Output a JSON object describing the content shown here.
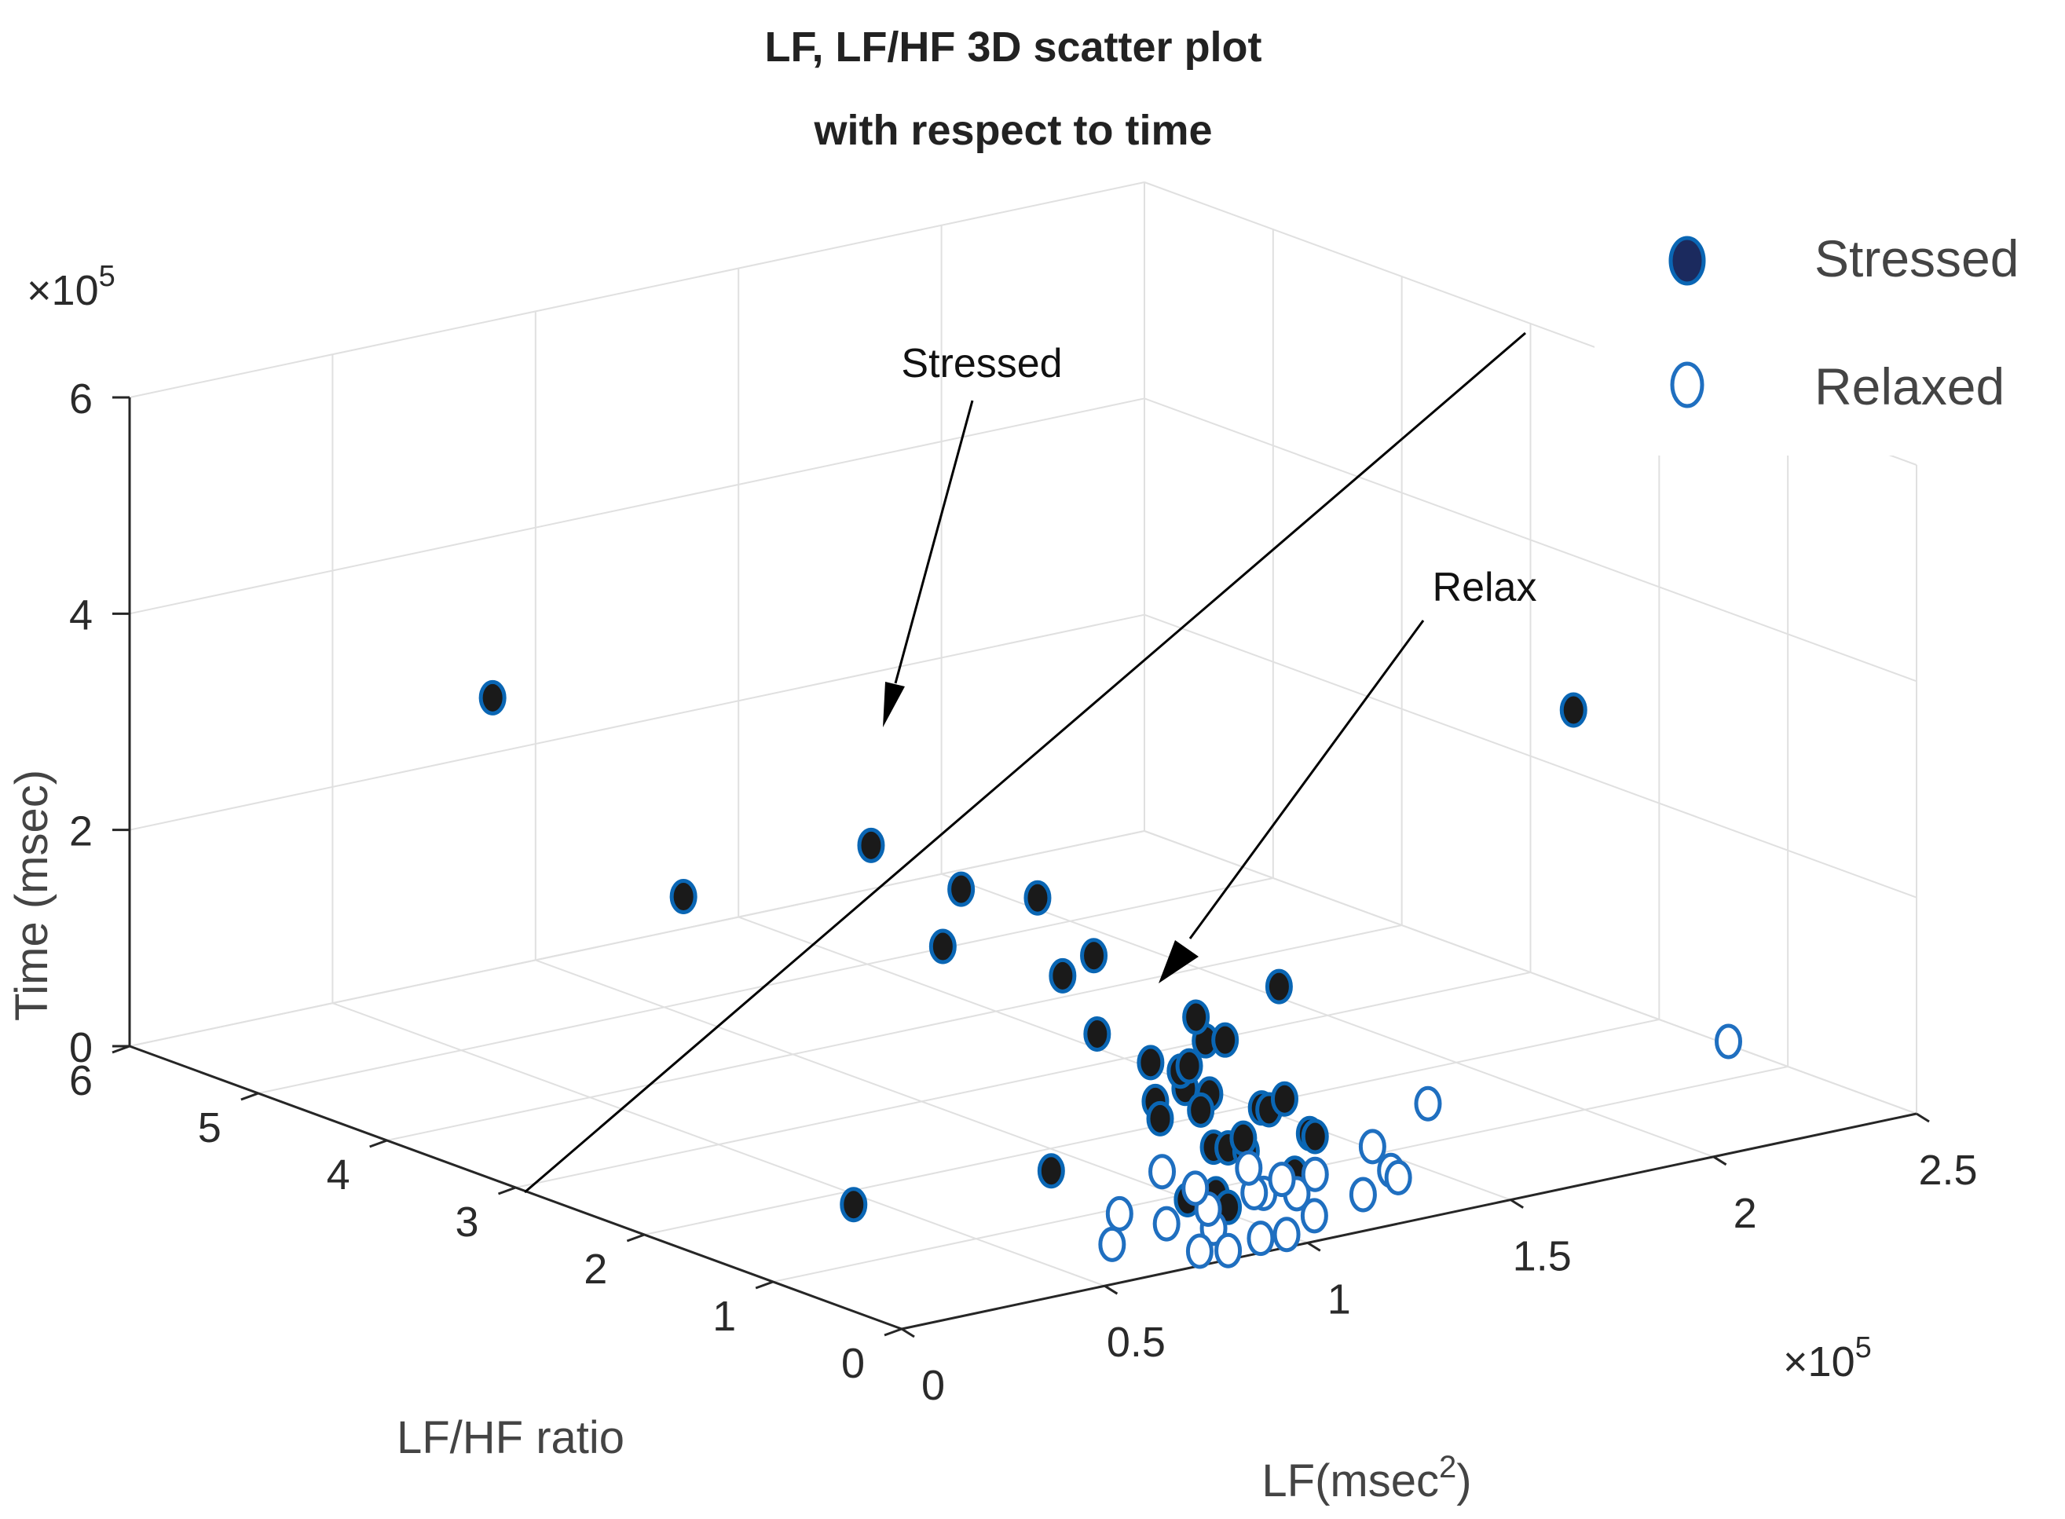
{
  "chart_data": {
    "type": "scatter3d",
    "title": [
      "LF, LF/HF 3D scatter plot",
      "with respect to time"
    ],
    "xlabel": "LF(msec",
    "xlabel_sup": "2",
    "xlabel_close": ")",
    "ylabel": "LF/HF ratio",
    "zlabel": "Time (msec)",
    "x_exponent": "×10",
    "x_exponent_power": "5",
    "z_exponent": "×10",
    "z_exponent_power": "5",
    "xlim": [
      0,
      2.5
    ],
    "ylim": [
      0,
      6
    ],
    "zlim": [
      0,
      6
    ],
    "x_ticks": [
      "0",
      "0.5",
      "1",
      "1.5",
      "2",
      "2.5"
    ],
    "y_ticks": [
      "0",
      "1",
      "2",
      "3",
      "4",
      "5",
      "6"
    ],
    "z_ticks": [
      "0",
      "2",
      "4",
      "6"
    ],
    "grid": true,
    "legend": {
      "position": "top-right",
      "entries": [
        {
          "label": "Stressed",
          "style": "filled"
        },
        {
          "label": "Relaxed",
          "style": "open"
        }
      ]
    },
    "annotations": [
      {
        "text": "Stressed"
      },
      {
        "text": "Relax"
      }
    ],
    "colors": {
      "stressed_fill": "#1a1a1a",
      "stressed_edge": "#0a66b4",
      "relaxed_edge": "#1f6fc0",
      "legend_stressed_fill": "#1b2a5e",
      "axis": "#262626",
      "grid": "#e0e0e0"
    },
    "series": [
      {
        "name": "Stressed",
        "points": [
          {
            "x": 0.07,
            "y": 3.4,
            "z": 4.3
          },
          {
            "x": 0.4,
            "y": 0.8,
            "z": 3.4
          },
          {
            "x": 0.4,
            "y": 1.5,
            "z": 3.5
          },
          {
            "x": 0.45,
            "y": 1.1,
            "z": 2.7
          },
          {
            "x": 0.4,
            "y": 0.1,
            "z": 1.1
          },
          {
            "x": 0.62,
            "y": 0.9,
            "z": 3.1
          },
          {
            "x": 0.6,
            "y": 0.4,
            "z": 2.8
          },
          {
            "x": 0.65,
            "y": 0.8,
            "z": 2.4
          },
          {
            "x": 0.64,
            "y": 0.5,
            "z": 2.0
          },
          {
            "x": 0.73,
            "y": 0.1,
            "z": 1.6
          },
          {
            "x": 0.72,
            "y": 0.3,
            "z": 1.4
          },
          {
            "x": 0.74,
            "y": 0.4,
            "z": 1.7
          },
          {
            "x": 0.75,
            "y": 0.2,
            "z": 1.7
          },
          {
            "x": 0.78,
            "y": 0.1,
            "z": 2.0
          },
          {
            "x": 0.79,
            "y": 0.1,
            "z": 1.5
          },
          {
            "x": 0.8,
            "y": 0.2,
            "z": 1.3
          },
          {
            "x": 0.82,
            "y": 0.3,
            "z": 2.1
          },
          {
            "x": 0.7,
            "y": 0.2,
            "z": 1.3
          },
          {
            "x": 0.74,
            "y": 0.1,
            "z": 1.8
          },
          {
            "x": 0.86,
            "y": 0.2,
            "z": 1.9
          },
          {
            "x": 0.8,
            "y": 0.1,
            "z": 1.0
          },
          {
            "x": 0.82,
            "y": 0.05,
            "z": 1.0
          },
          {
            "x": 0.88,
            "y": 0.1,
            "z": 0.9
          },
          {
            "x": 0.72,
            "y": 0.05,
            "z": 0.6
          },
          {
            "x": 0.78,
            "y": 0.05,
            "z": 0.55
          },
          {
            "x": 0.79,
            "y": 0.05,
            "z": 0.6
          },
          {
            "x": 0.82,
            "y": 0.05,
            "z": 0.45
          },
          {
            "x": 1.0,
            "y": 0.5,
            "z": 0.75
          },
          {
            "x": 1.0,
            "y": 0.1,
            "z": 0.6
          },
          {
            "x": 0.95,
            "y": 0.2,
            "z": 1.2
          },
          {
            "x": 1.0,
            "y": 0.3,
            "z": 1.1
          },
          {
            "x": 1.07,
            "y": 0.4,
            "z": 1.1
          },
          {
            "x": 1.1,
            "y": 0.3,
            "z": 0.8
          },
          {
            "x": 1.05,
            "y": 0.1,
            "z": 0.9
          },
          {
            "x": 1.31,
            "y": 1.2,
            "z": 1.6
          },
          {
            "x": 0.35,
            "y": 2.8,
            "z": 2.5
          },
          {
            "x": 0.04,
            "y": 0.5,
            "z": 0.9
          },
          {
            "x": 1.75,
            "y": 0.3,
            "z": 4.2
          }
        ]
      },
      {
        "name": "Relaxed",
        "points": [
          {
            "x": 0.8,
            "y": 0.1,
            "z": 0.25
          },
          {
            "x": 0.85,
            "y": 0.3,
            "z": 0.3
          },
          {
            "x": 1.05,
            "y": 0.5,
            "z": 0.2
          },
          {
            "x": 1.1,
            "y": 0.4,
            "z": 0.2
          },
          {
            "x": 1.2,
            "y": 0.2,
            "z": 0.2
          },
          {
            "x": 1.3,
            "y": 0.3,
            "z": 0.3
          },
          {
            "x": 0.9,
            "y": 0.1,
            "z": 0.5
          },
          {
            "x": 1.0,
            "y": 0.2,
            "z": 0.5
          },
          {
            "x": 1.05,
            "y": 0.1,
            "z": 0.55
          },
          {
            "x": 0.85,
            "y": 0.4,
            "z": 0.45
          },
          {
            "x": 0.95,
            "y": 0.3,
            "z": 0.6
          },
          {
            "x": 0.8,
            "y": 0.5,
            "z": 0.6
          },
          {
            "x": 0.6,
            "y": 0.2,
            "z": 0.5
          },
          {
            "x": 0.7,
            "y": 0.15,
            "z": 0.35
          },
          {
            "x": 0.55,
            "y": 0.1,
            "z": 0.3
          },
          {
            "x": 0.75,
            "y": 0.05,
            "z": 0.1
          },
          {
            "x": 0.82,
            "y": 0.05,
            "z": 0.05
          },
          {
            "x": 0.9,
            "y": 0.05,
            "z": 0.1
          },
          {
            "x": 0.98,
            "y": 0.1,
            "z": 0.05
          },
          {
            "x": 1.08,
            "y": 0.2,
            "z": 0.1
          },
          {
            "x": 1.35,
            "y": 0.4,
            "z": 0.15
          },
          {
            "x": 1.35,
            "y": 0.6,
            "z": 0.35
          },
          {
            "x": 1.55,
            "y": 0.8,
            "z": 0.5
          },
          {
            "x": 2.1,
            "y": 0.2,
            "z": 0.9
          }
        ]
      }
    ]
  }
}
